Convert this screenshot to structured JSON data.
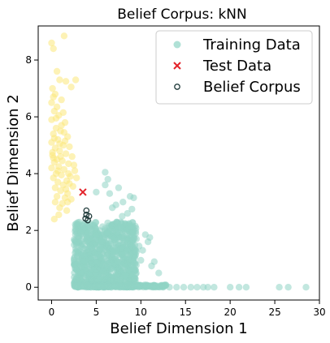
{
  "chart_data": {
    "type": "scatter",
    "title": "Belief Corpus: kNN",
    "xlabel": "Belief Dimension 1",
    "ylabel": "Belief Dimension 2",
    "xlim": [
      -1.5,
      30
    ],
    "ylim": [
      -0.45,
      9.2
    ],
    "xticks": [
      0,
      5,
      10,
      15,
      20,
      25,
      30
    ],
    "yticks": [
      0,
      2,
      4,
      6,
      8
    ],
    "legend_position": "top-right",
    "grid": false,
    "colors": {
      "training": "#8fd4c4",
      "yellow_cluster": "#fbe77a",
      "test": "#e3242b",
      "corpus": "#1f3a3a"
    },
    "legend": [
      "Training Data",
      "Test Data",
      "Belief Corpus"
    ],
    "series": [
      {
        "name": "Training Data",
        "points": [
          [
            0.0,
            8.6
          ],
          [
            0.2,
            8.4
          ],
          [
            1.4,
            8.85
          ],
          [
            0.6,
            7.6
          ],
          [
            0.9,
            7.3
          ],
          [
            1.6,
            7.25
          ],
          [
            2.7,
            7.3
          ],
          [
            2.2,
            7.05
          ],
          [
            0.1,
            7.0
          ],
          [
            0.4,
            6.8
          ],
          [
            1.1,
            6.6
          ],
          [
            0.3,
            6.2
          ],
          [
            0.8,
            6.05
          ],
          [
            0.0,
            5.9
          ],
          [
            1.5,
            5.8
          ],
          [
            0.5,
            5.6
          ],
          [
            1.0,
            5.5
          ],
          [
            0.2,
            5.4
          ],
          [
            1.8,
            5.3
          ],
          [
            0.7,
            5.2
          ],
          [
            0.0,
            5.1
          ],
          [
            1.3,
            5.0
          ],
          [
            2.0,
            4.95
          ],
          [
            0.4,
            4.9
          ],
          [
            0.9,
            4.8
          ],
          [
            1.6,
            4.7
          ],
          [
            0.1,
            4.65
          ],
          [
            2.3,
            4.6
          ],
          [
            0.6,
            4.5
          ],
          [
            1.2,
            4.45
          ],
          [
            0.3,
            4.4
          ],
          [
            1.9,
            4.35
          ],
          [
            0.8,
            4.25
          ],
          [
            0.0,
            4.2
          ],
          [
            1.4,
            4.15
          ],
          [
            2.6,
            4.1
          ],
          [
            0.5,
            4.0
          ],
          [
            1.1,
            3.95
          ],
          [
            2.1,
            3.9
          ],
          [
            0.2,
            3.85
          ],
          [
            1.7,
            3.75
          ],
          [
            0.7,
            3.7
          ],
          [
            1.3,
            3.6
          ],
          [
            2.4,
            3.55
          ],
          [
            0.4,
            3.5
          ],
          [
            1.0,
            3.4
          ],
          [
            1.8,
            3.3
          ],
          [
            0.6,
            3.2
          ],
          [
            1.5,
            3.15
          ],
          [
            2.2,
            3.1
          ],
          [
            1.2,
            2.95
          ],
          [
            0.9,
            2.8
          ],
          [
            1.7,
            2.7
          ],
          [
            0.8,
            2.55
          ],
          [
            0.3,
            2.4
          ],
          [
            0.5,
            5.95
          ],
          [
            1.1,
            5.7
          ],
          [
            0.3,
            5.25
          ],
          [
            1.5,
            5.15
          ],
          [
            2.5,
            4.3
          ],
          [
            0.2,
            4.55
          ],
          [
            1.6,
            3.45
          ],
          [
            0.0,
            6.5
          ],
          [
            0.6,
            6.35
          ],
          [
            1.3,
            6.15
          ],
          [
            0.1,
            4.75
          ],
          [
            1.9,
            4.0
          ],
          [
            2.0,
            3.65
          ],
          [
            0.4,
            3.0
          ],
          [
            2.8,
            3.85
          ],
          [
            1.0,
            4.6
          ],
          [
            0.7,
            4.1
          ],
          [
            1.4,
            5.45
          ],
          [
            0.9,
            5.05
          ],
          [
            0.2,
            6.7
          ],
          [
            1.8,
            3.0
          ]
        ]
      },
      {
        "name": "Test Data",
        "points": [
          [
            3.5,
            3.35
          ]
        ]
      },
      {
        "name": "Belief Corpus",
        "points": [
          [
            3.9,
            2.7
          ],
          [
            4.2,
            2.5
          ],
          [
            3.8,
            2.42
          ],
          [
            4.05,
            2.36
          ],
          [
            3.9,
            2.55
          ]
        ]
      }
    ],
    "training_main": {
      "dense_cluster": {
        "x_range": [
          2.5,
          9.5
        ],
        "y_range": [
          0,
          2.3
        ]
      },
      "outliers": [
        [
          6.0,
          4.05
        ],
        [
          6.3,
          3.8
        ],
        [
          6.0,
          3.6
        ],
        [
          7.5,
          3.5
        ],
        [
          5.0,
          3.35
        ],
        [
          6.5,
          3.3
        ],
        [
          8.8,
          3.2
        ],
        [
          9.2,
          3.15
        ],
        [
          8.0,
          3.0
        ],
        [
          7.2,
          2.9
        ],
        [
          6.8,
          2.8
        ],
        [
          9.0,
          2.75
        ],
        [
          8.5,
          2.6
        ],
        [
          7.9,
          2.5
        ],
        [
          10.5,
          1.85
        ],
        [
          11.0,
          1.75
        ],
        [
          10.8,
          1.6
        ],
        [
          9.8,
          1.45
        ],
        [
          10.2,
          1.3
        ],
        [
          9.5,
          1.25
        ],
        [
          11.5,
          0.9
        ],
        [
          11.2,
          0.75
        ],
        [
          12.0,
          0.5
        ],
        [
          10.0,
          0.95
        ]
      ],
      "tail": [
        [
          12.5,
          0
        ],
        [
          13.2,
          0
        ],
        [
          14.0,
          0
        ],
        [
          14.8,
          0
        ],
        [
          15.6,
          0
        ],
        [
          16.3,
          0
        ],
        [
          17.0,
          0
        ],
        [
          17.5,
          0
        ],
        [
          18.2,
          0
        ],
        [
          20.0,
          0
        ],
        [
          21.0,
          0
        ],
        [
          21.8,
          0
        ],
        [
          25.5,
          0
        ],
        [
          26.5,
          0
        ],
        [
          28.5,
          0
        ]
      ]
    }
  }
}
